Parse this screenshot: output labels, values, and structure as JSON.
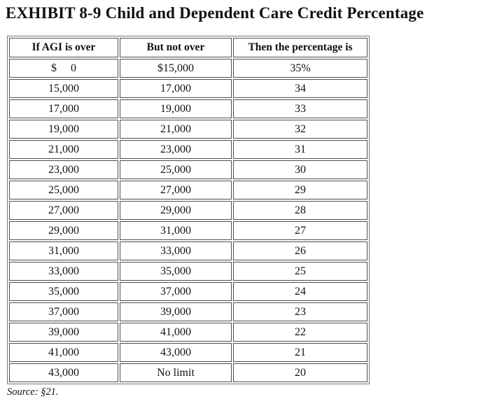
{
  "title": "EXHIBIT 8-9 Child and Dependent Care Credit Percentage",
  "source_note": "Source: §21.",
  "colors": {
    "text": "#111111",
    "table_border_inner": "#4d4d4d",
    "table_border_outer": "#767676",
    "background": "#ffffff"
  },
  "chart_data": {
    "type": "table",
    "title": "Child and Dependent Care Credit Percentage",
    "columns": [
      "If AGI is over",
      "But not over",
      "Then the percentage is"
    ],
    "rows": [
      [
        "$     0",
        "$15,000",
        "35%"
      ],
      [
        "15,000",
        "17,000",
        "34"
      ],
      [
        "17,000",
        "19,000",
        "33"
      ],
      [
        "19,000",
        "21,000",
        "32"
      ],
      [
        "21,000",
        "23,000",
        "31"
      ],
      [
        "23,000",
        "25,000",
        "30"
      ],
      [
        "25,000",
        "27,000",
        "29"
      ],
      [
        "27,000",
        "29,000",
        "28"
      ],
      [
        "29,000",
        "31,000",
        "27"
      ],
      [
        "31,000",
        "33,000",
        "26"
      ],
      [
        "33,000",
        "35,000",
        "25"
      ],
      [
        "35,000",
        "37,000",
        "24"
      ],
      [
        "37,000",
        "39,000",
        "23"
      ],
      [
        "39,000",
        "41,000",
        "22"
      ],
      [
        "41,000",
        "43,000",
        "21"
      ],
      [
        "43,000",
        "No limit",
        "20"
      ]
    ]
  }
}
